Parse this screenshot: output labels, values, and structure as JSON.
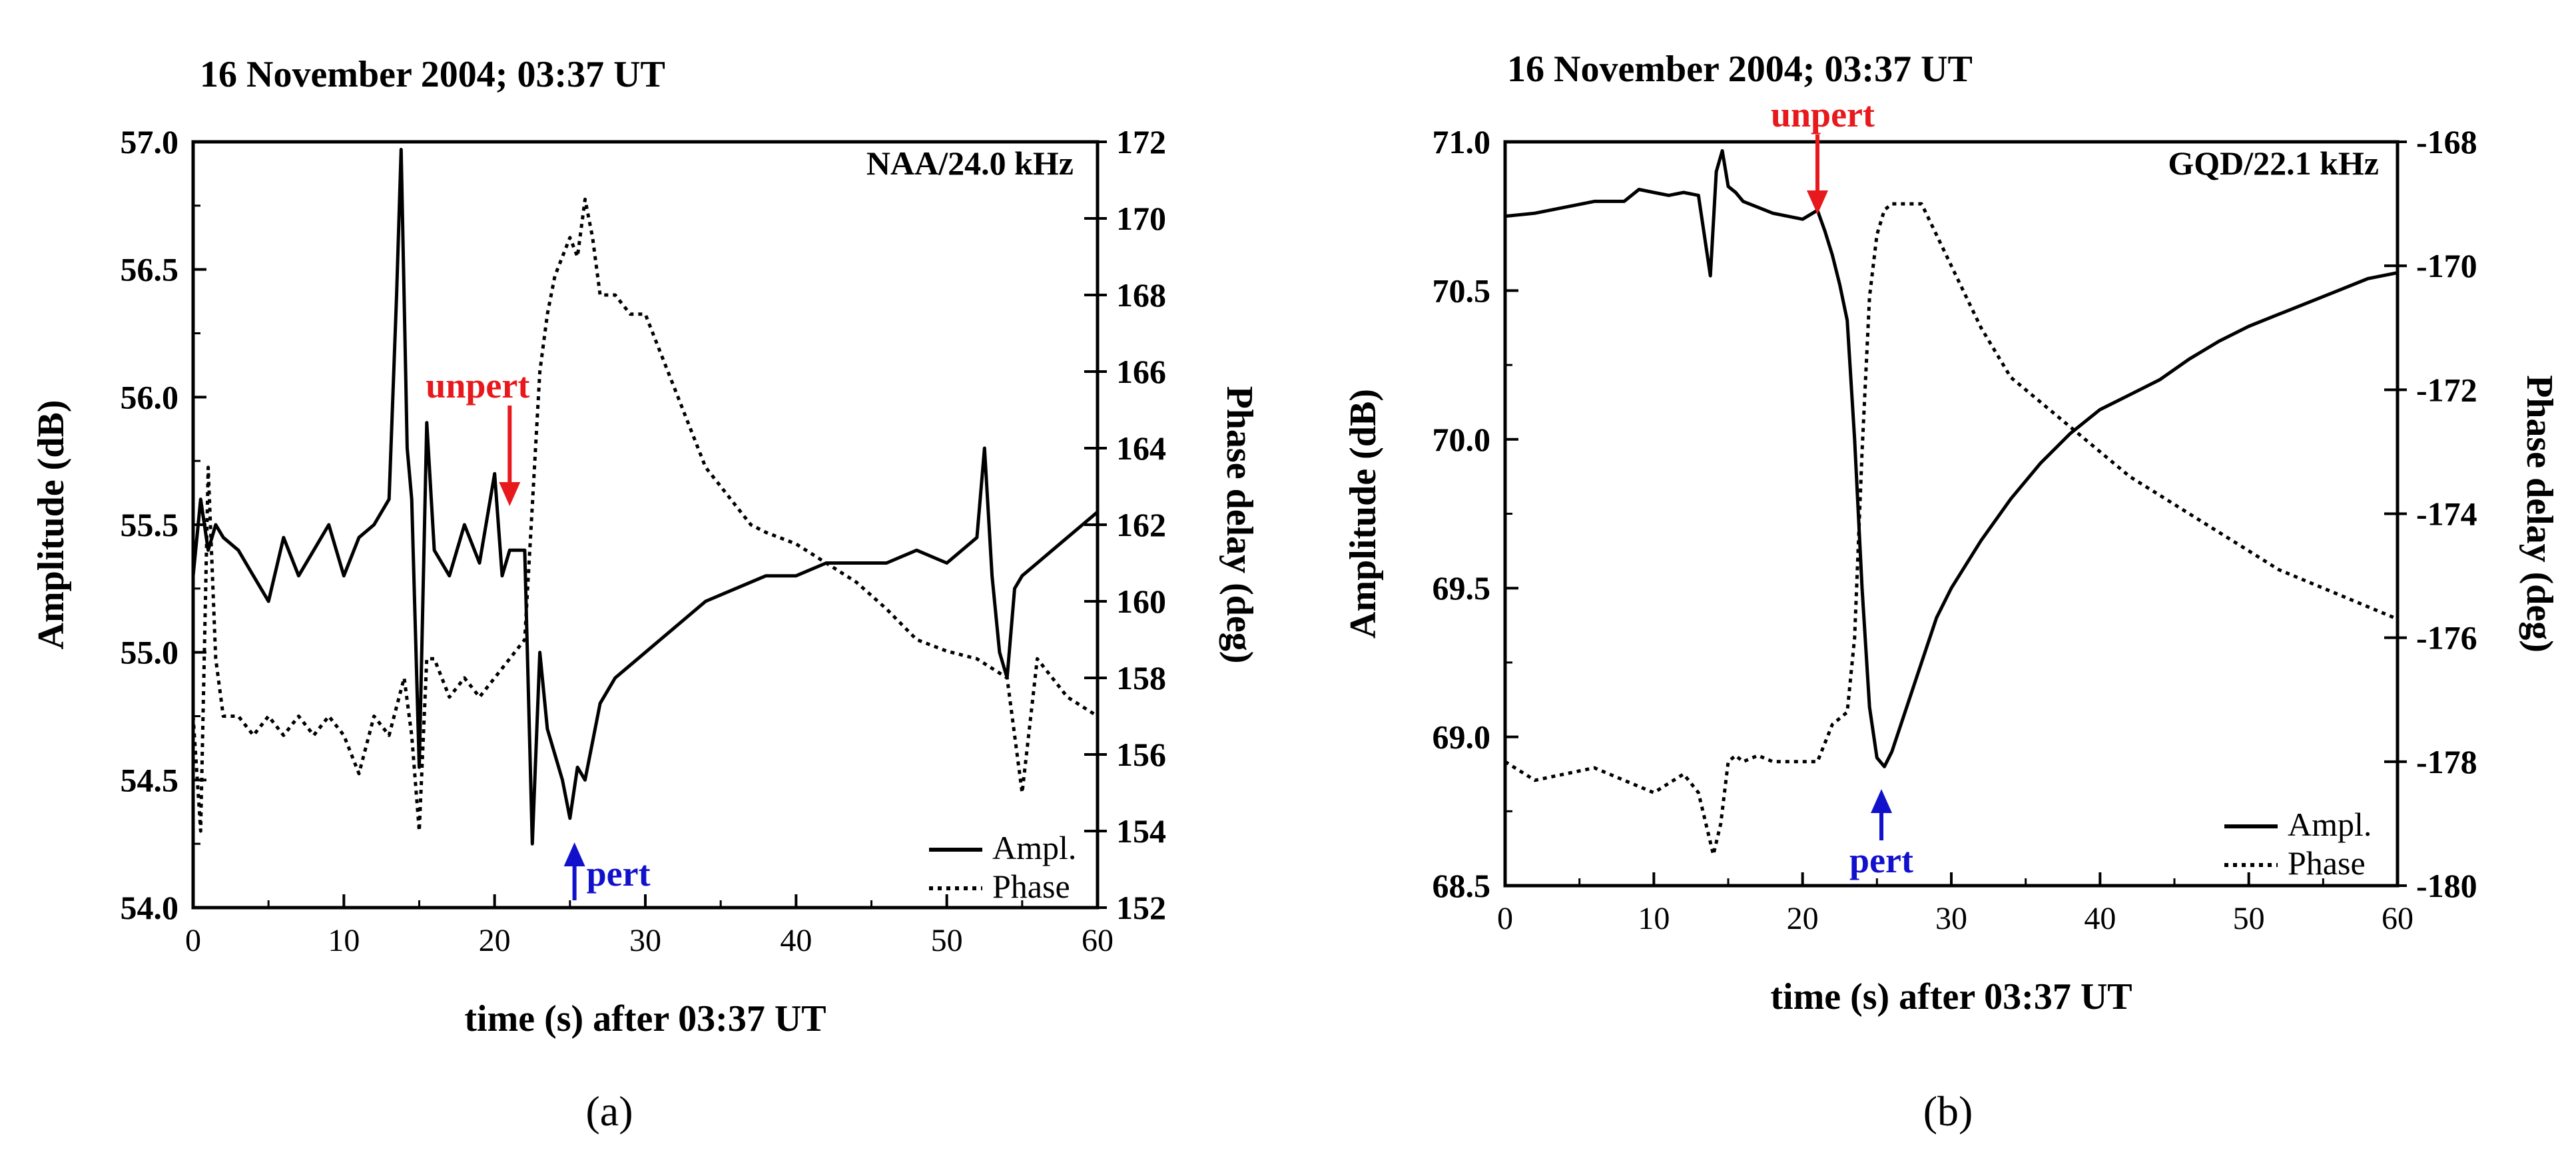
{
  "chart_data": [
    {
      "type": "line",
      "panel_label": "(a)",
      "title": "16 November 2004; 03:37 UT",
      "station": "NAA/24.0 kHz",
      "xlabel": "time (s) after 03:37 UT",
      "ylabel": "Amplitude (dB)",
      "y2label": "Phase delay (deg)",
      "xlim": [
        0,
        60
      ],
      "ylim": [
        54.0,
        57.0
      ],
      "y2lim": [
        152,
        172
      ],
      "xticks": [
        "0",
        "10",
        "20",
        "30",
        "40",
        "50",
        "60"
      ],
      "yticks": [
        "54.0",
        "54.5",
        "55.0",
        "55.5",
        "56.0",
        "56.5",
        "57.0"
      ],
      "y2ticks": [
        "152",
        "154",
        "156",
        "158",
        "160",
        "162",
        "164",
        "166",
        "168",
        "170",
        "172"
      ],
      "legend": {
        "placement": "bottom-right",
        "entries": [
          "Ampl.",
          "Phase"
        ]
      },
      "series": [
        {
          "name": "Ampl.",
          "axis": "left",
          "style": "solid",
          "x": [
            0,
            0.5,
            1,
            1.5,
            2,
            3,
            4,
            5,
            6,
            7,
            8,
            9,
            10,
            11,
            12,
            13,
            13.5,
            13.8,
            14.2,
            14.5,
            15,
            15.5,
            16,
            17,
            18,
            19,
            20,
            20.5,
            21,
            22,
            22.5,
            23,
            23.5,
            24,
            24.5,
            25,
            25.5,
            26,
            27,
            28,
            29,
            30,
            31,
            32,
            34,
            36,
            38,
            40,
            42,
            44,
            46,
            48,
            50,
            52,
            52.5,
            53,
            53.5,
            54,
            54.5,
            55,
            56,
            57,
            58,
            59,
            60
          ],
          "values": [
            55.3,
            55.6,
            55.4,
            55.5,
            55.45,
            55.4,
            55.3,
            55.2,
            55.45,
            55.3,
            55.4,
            55.5,
            55.3,
            55.45,
            55.5,
            55.6,
            56.4,
            56.97,
            55.8,
            55.6,
            54.55,
            55.9,
            55.4,
            55.3,
            55.5,
            55.35,
            55.7,
            55.3,
            55.4,
            55.4,
            54.25,
            55.0,
            54.7,
            54.6,
            54.5,
            54.35,
            54.55,
            54.5,
            54.8,
            54.9,
            54.95,
            55.0,
            55.05,
            55.1,
            55.2,
            55.25,
            55.3,
            55.3,
            55.35,
            55.35,
            55.35,
            55.4,
            55.35,
            55.45,
            55.8,
            55.3,
            55.0,
            54.9,
            55.25,
            55.3,
            55.35,
            55.4,
            55.45,
            55.5,
            55.55
          ]
        },
        {
          "name": "Phase",
          "axis": "right",
          "style": "dotted",
          "x": [
            0,
            0.5,
            1,
            1.5,
            2,
            3,
            4,
            5,
            6,
            7,
            8,
            9,
            10,
            11,
            12,
            13,
            14,
            14.5,
            15,
            15.5,
            16,
            17,
            18,
            19,
            20,
            21,
            22,
            22.5,
            23,
            23.5,
            24,
            24.5,
            25,
            25.5,
            26,
            26.5,
            27,
            28,
            29,
            30,
            31,
            32,
            33,
            34,
            35,
            36,
            37,
            38,
            40,
            42,
            44,
            46,
            48,
            50,
            52,
            54,
            55,
            56,
            58,
            60
          ],
          "values": [
            157.0,
            154.0,
            163.5,
            158.5,
            157.0,
            157.0,
            156.5,
            157.0,
            156.5,
            157.0,
            156.5,
            157.0,
            156.5,
            155.5,
            157.0,
            156.5,
            158.0,
            156.5,
            154.0,
            158.5,
            158.5,
            157.5,
            158.0,
            157.5,
            158.0,
            158.5,
            159.0,
            162.5,
            166.0,
            167.5,
            168.5,
            169.0,
            169.5,
            169.0,
            170.5,
            169.5,
            168.0,
            168.0,
            167.5,
            167.5,
            166.5,
            165.5,
            164.5,
            163.5,
            163.0,
            162.5,
            162.0,
            161.8,
            161.5,
            161.0,
            160.5,
            159.8,
            159.0,
            158.7,
            158.5,
            158.0,
            155.0,
            158.5,
            157.5,
            157.0
          ]
        }
      ],
      "annotations": [
        {
          "text": "unpert",
          "x": 21,
          "color": "#e8191c",
          "arrow": "down"
        },
        {
          "text": "pert",
          "x": 25.3,
          "color": "#1111cc",
          "arrow": "up"
        }
      ]
    },
    {
      "type": "line",
      "panel_label": "(b)",
      "title": "16 November 2004; 03:37 UT",
      "station": "GQD/22.1 kHz",
      "xlabel": "time (s) after 03:37 UT",
      "ylabel": "Amplitude (dB)",
      "y2label": "Phase delay (deg)",
      "xlim": [
        0,
        60
      ],
      "ylim": [
        68.5,
        71.0
      ],
      "y2lim": [
        -180,
        -168
      ],
      "xticks": [
        "0",
        "10",
        "20",
        "30",
        "40",
        "50",
        "60"
      ],
      "yticks": [
        "68.5",
        "69.0",
        "69.5",
        "70.0",
        "70.5",
        "71.0"
      ],
      "y2ticks": [
        "-180",
        "-178",
        "-176",
        "-174",
        "-172",
        "-170",
        "-168"
      ],
      "legend": {
        "placement": "bottom-right",
        "entries": [
          "Ampl.",
          "Phase"
        ]
      },
      "series": [
        {
          "name": "Ampl.",
          "axis": "left",
          "style": "solid",
          "x": [
            0,
            2,
            4,
            6,
            8,
            9,
            10,
            11,
            12,
            13,
            13.8,
            14.2,
            14.6,
            15,
            15.5,
            16,
            17,
            18,
            19,
            20,
            21,
            21.5,
            22,
            22.5,
            23,
            23.5,
            24,
            24.5,
            25,
            25.5,
            26,
            27,
            28,
            29,
            30,
            32,
            34,
            36,
            38,
            40,
            42,
            44,
            46,
            48,
            50,
            52,
            54,
            56,
            58,
            60
          ],
          "values": [
            70.75,
            70.76,
            70.78,
            70.8,
            70.8,
            70.84,
            70.83,
            70.82,
            70.83,
            70.82,
            70.55,
            70.9,
            70.97,
            70.85,
            70.83,
            70.8,
            70.78,
            70.76,
            70.75,
            70.74,
            70.77,
            70.7,
            70.62,
            70.52,
            70.4,
            70.0,
            69.5,
            69.1,
            68.93,
            68.9,
            68.95,
            69.1,
            69.25,
            69.4,
            69.5,
            69.66,
            69.8,
            69.92,
            70.02,
            70.1,
            70.15,
            70.2,
            70.27,
            70.33,
            70.38,
            70.42,
            70.46,
            70.5,
            70.54,
            70.56
          ]
        },
        {
          "name": "Phase",
          "axis": "right",
          "style": "dotted",
          "x": [
            0,
            2,
            4,
            6,
            8,
            10,
            12,
            13,
            14,
            14.5,
            15,
            15.5,
            16,
            17,
            18,
            19,
            20,
            21,
            21.5,
            22,
            22.5,
            23,
            23.5,
            24,
            24.5,
            25,
            25.5,
            26,
            27,
            28,
            29,
            30,
            31,
            32,
            33,
            34,
            35,
            36,
            38,
            40,
            42,
            44,
            46,
            48,
            50,
            52,
            54,
            56,
            58,
            60
          ],
          "values": [
            -178.0,
            -178.3,
            -178.2,
            -178.1,
            -178.3,
            -178.5,
            -178.2,
            -178.5,
            -179.5,
            -179.0,
            -178.0,
            -177.9,
            -178.0,
            -177.9,
            -178.0,
            -178.0,
            -178.0,
            -178.0,
            -177.7,
            -177.4,
            -177.3,
            -177.2,
            -176.0,
            -173.0,
            -170.5,
            -169.5,
            -169.1,
            -169.0,
            -169.0,
            -169.0,
            -169.5,
            -170.0,
            -170.5,
            -171.0,
            -171.4,
            -171.8,
            -172.0,
            -172.2,
            -172.6,
            -173.0,
            -173.4,
            -173.7,
            -174.0,
            -174.3,
            -174.6,
            -174.9,
            -175.1,
            -175.3,
            -175.5,
            -175.7
          ]
        }
      ],
      "annotations": [
        {
          "text": "unpert",
          "x": 21,
          "color": "#e8191c",
          "arrow": "down"
        },
        {
          "text": "pert",
          "x": 25.3,
          "color": "#1111cc",
          "arrow": "up"
        }
      ]
    }
  ]
}
